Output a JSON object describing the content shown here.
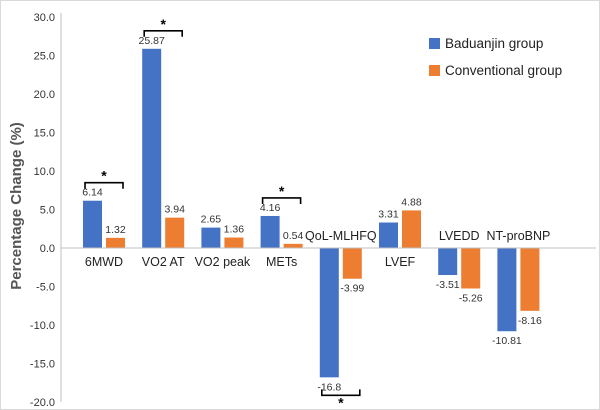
{
  "chart_data": {
    "type": "bar",
    "ylabel": "Percentage Change (%)",
    "ylim": [
      -20,
      30
    ],
    "yticks": [
      "30.0",
      "25.0",
      "20.0",
      "15.0",
      "10.0",
      "5.0",
      "0.0",
      "-5.0",
      "-10.0",
      "-15.0",
      "-20.0"
    ],
    "ytick_values": [
      30,
      25,
      20,
      15,
      10,
      5,
      0,
      -5,
      -10,
      -15,
      -20
    ],
    "grid": false,
    "legend": "top-right",
    "categories": [
      "6MWD",
      "VO2 AT",
      "VO2 peak",
      "METs",
      "QoL-MLHFQ",
      "LVEF",
      "LVEDD",
      "NT-proBNP"
    ],
    "series": [
      {
        "name": "Baduanjin group",
        "color": "#4472C4",
        "values": [
          6.14,
          25.87,
          2.65,
          4.16,
          -16.8,
          3.31,
          -3.51,
          -10.81
        ],
        "labels": [
          "6.14",
          "25.87",
          "2.65",
          "4.16",
          "-16.8",
          "3.31",
          "-3.51",
          "-10.81"
        ]
      },
      {
        "name": "Conventional  group",
        "color": "#ED7D31",
        "values": [
          1.32,
          3.94,
          1.36,
          0.54,
          -3.99,
          4.88,
          -5.26,
          -8.16
        ],
        "labels": [
          "1.32",
          "3.94",
          "1.36",
          "0.54",
          "-3.99",
          "4.88",
          "-5.26",
          "-8.16"
        ]
      }
    ],
    "significance": [
      {
        "category": "6MWD",
        "symbol": "*"
      },
      {
        "category": "VO2 AT",
        "symbol": "*"
      },
      {
        "category": "METs",
        "symbol": "*"
      },
      {
        "category": "QoL-MLHFQ",
        "symbol": "*"
      }
    ]
  }
}
